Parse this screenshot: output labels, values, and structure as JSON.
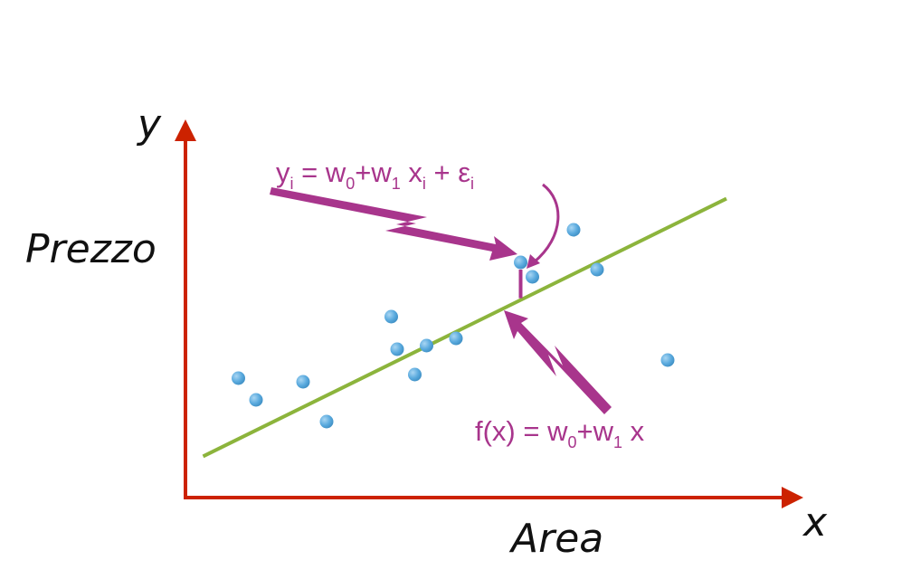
{
  "chart_data": {
    "type": "scatter",
    "axis_color": "#cc2200",
    "fit_line_color": "#8cb43c",
    "point_color": "#5aaade",
    "annotation_color": "#a8358c",
    "labels": {
      "y_symbol": "y",
      "x_symbol": "x",
      "y_name": "Prezzo",
      "x_name": "Area"
    },
    "equations": {
      "observation": {
        "y": "y",
        "y_sub": "i",
        "eq": " = w",
        "w0_sub": "0",
        "plus_w": "+w",
        "w1_sub": "1",
        "x": " x",
        "x_sub": "i",
        "plus_eps": " + ε",
        "eps_sub": "i"
      },
      "model": {
        "fx": "f(x) = w",
        "w0_sub": "0",
        "plus_w": "+w",
        "w1_sub": "1",
        "x": " x"
      }
    },
    "xlim": [
      0,
      10
    ],
    "ylim": [
      0,
      10
    ],
    "fit_line": {
      "intercept": 0.9,
      "slope": 0.8
    },
    "points": [
      {
        "x": 0.9,
        "y": 3.3
      },
      {
        "x": 1.2,
        "y": 2.7
      },
      {
        "x": 2.0,
        "y": 3.2
      },
      {
        "x": 2.4,
        "y": 2.1
      },
      {
        "x": 3.5,
        "y": 5.0
      },
      {
        "x": 3.6,
        "y": 4.1
      },
      {
        "x": 3.9,
        "y": 3.4
      },
      {
        "x": 4.1,
        "y": 4.2
      },
      {
        "x": 4.6,
        "y": 4.4
      },
      {
        "x": 5.7,
        "y": 6.5
      },
      {
        "x": 5.9,
        "y": 6.1
      },
      {
        "x": 6.6,
        "y": 7.4
      },
      {
        "x": 7.0,
        "y": 6.3
      },
      {
        "x": 8.2,
        "y": 3.8
      }
    ]
  }
}
